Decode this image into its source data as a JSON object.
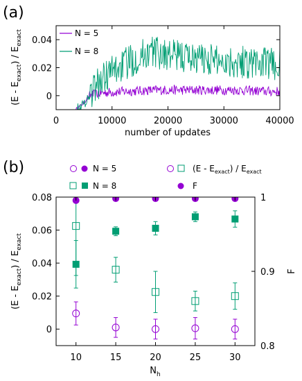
{
  "chart_data": [
    {
      "type": "line",
      "panel_label": "(a)",
      "xlabel": "number of updates",
      "ylabel": {
        "main": "(E - E",
        "sub1": "exact",
        "mid": ") / E",
        "sub2": "exact"
      },
      "xlim": [
        0,
        40000
      ],
      "ylim": [
        -0.01,
        0.05
      ],
      "xticks": [
        {
          "v": 0,
          "t": "0"
        },
        {
          "v": 10000,
          "t": "10000"
        },
        {
          "v": 20000,
          "t": "20000"
        },
        {
          "v": 30000,
          "t": "30000"
        },
        {
          "v": 40000,
          "t": "40000"
        }
      ],
      "yticks": [
        {
          "v": 0,
          "t": "0"
        },
        {
          "v": 0.02,
          "t": "0.02"
        },
        {
          "v": 0.04,
          "t": "0.04"
        }
      ],
      "legend_position": "top-left",
      "series": [
        {
          "name": "N = 5",
          "color": "#9400d3",
          "x_start": 3500,
          "x_end": 40000,
          "step": 100,
          "envelope": [
            [
              3500,
              -0.01
            ],
            [
              5000,
              -0.005
            ],
            [
              6000,
              0.0
            ],
            [
              8000,
              0.002
            ],
            [
              12000,
              0.003
            ],
            [
              18000,
              0.004
            ],
            [
              25000,
              0.004
            ],
            [
              32000,
              0.004
            ],
            [
              38000,
              0.003
            ],
            [
              40000,
              0.003
            ]
          ],
          "amplitude": 0.0035
        },
        {
          "name": "N = 8",
          "color": "#009e73",
          "x_start": 3500,
          "x_end": 40000,
          "step": 100,
          "envelope": [
            [
              3500,
              -0.01
            ],
            [
              5000,
              -0.006
            ],
            [
              6500,
              0.004
            ],
            [
              9000,
              0.015
            ],
            [
              12000,
              0.022
            ],
            [
              15000,
              0.028
            ],
            [
              17000,
              0.032
            ],
            [
              20000,
              0.029
            ],
            [
              25000,
              0.027
            ],
            [
              30000,
              0.025
            ],
            [
              35000,
              0.024
            ],
            [
              40000,
              0.022
            ]
          ],
          "amplitude": 0.012
        }
      ]
    },
    {
      "type": "scatter",
      "panel_label": "(b)",
      "xlabel": {
        "main": "N",
        "sub": "h"
      },
      "ylabel": {
        "main": "(E - E",
        "sub1": "exact",
        "mid": ") / E",
        "sub2": "exact"
      },
      "y2label": "F",
      "xlim": [
        7.5,
        32.5
      ],
      "ylim": [
        -0.01,
        0.08
      ],
      "y2lim": [
        0.8,
        1.0
      ],
      "xticks": [
        {
          "v": 10,
          "t": "10"
        },
        {
          "v": 15,
          "t": "15"
        },
        {
          "v": 20,
          "t": "20"
        },
        {
          "v": 25,
          "t": "25"
        },
        {
          "v": 30,
          "t": "30"
        }
      ],
      "yticks": [
        {
          "v": 0,
          "t": "0"
        },
        {
          "v": 0.02,
          "t": "0.02"
        },
        {
          "v": 0.04,
          "t": "0.04"
        },
        {
          "v": 0.06,
          "t": "0.06"
        },
        {
          "v": 0.08,
          "t": "0.08"
        }
      ],
      "y2ticks": [
        {
          "v": 0.8,
          "t": "0.8"
        },
        {
          "v": 0.9,
          "t": "0.9"
        },
        {
          "v": 1.0,
          "t": "1"
        }
      ],
      "legend": {
        "n5": "N = 5",
        "n8": "N = 8",
        "open": {
          "main": "(E - E",
          "sub1": "exact",
          "mid": ") / E",
          "sub2": "exact"
        },
        "filled": "F"
      },
      "series": [
        {
          "name": "N = 5",
          "quantity": "energy_error",
          "marker": "open-circle",
          "color": "#9400d3",
          "x": [
            10,
            15,
            20,
            25,
            30
          ],
          "y": [
            0.0095,
            0.001,
            0.0,
            0.0005,
            0.0
          ],
          "err": [
            0.007,
            0.006,
            0.006,
            0.0065,
            0.006
          ]
        },
        {
          "name": "N = 8",
          "quantity": "energy_error",
          "marker": "open-square",
          "color": "#009e73",
          "x": [
            10,
            15,
            20,
            25,
            30
          ],
          "y": [
            0.0625,
            0.036,
            0.0225,
            0.017,
            0.02
          ],
          "err": [
            0.03,
            0.0075,
            0.0125,
            0.006,
            0.008
          ]
        },
        {
          "name": "N = 5",
          "quantity": "F",
          "marker": "filled-circle",
          "color": "#9400d3",
          "x": [
            10,
            15,
            20,
            25,
            30
          ],
          "y": [
            0.9955,
            0.998,
            0.998,
            0.998,
            0.998
          ],
          "err": [
            0.0,
            0.0,
            0.0,
            0.0,
            0.0
          ]
        },
        {
          "name": "N = 8",
          "quantity": "F",
          "marker": "filled-square",
          "color": "#009e73",
          "x": [
            10,
            15,
            20,
            25,
            30
          ],
          "y": [
            0.9095,
            0.954,
            0.958,
            0.9735,
            0.9705
          ],
          "err": [
            0.032,
            0.006,
            0.009,
            0.0065,
            0.011
          ]
        }
      ]
    }
  ]
}
